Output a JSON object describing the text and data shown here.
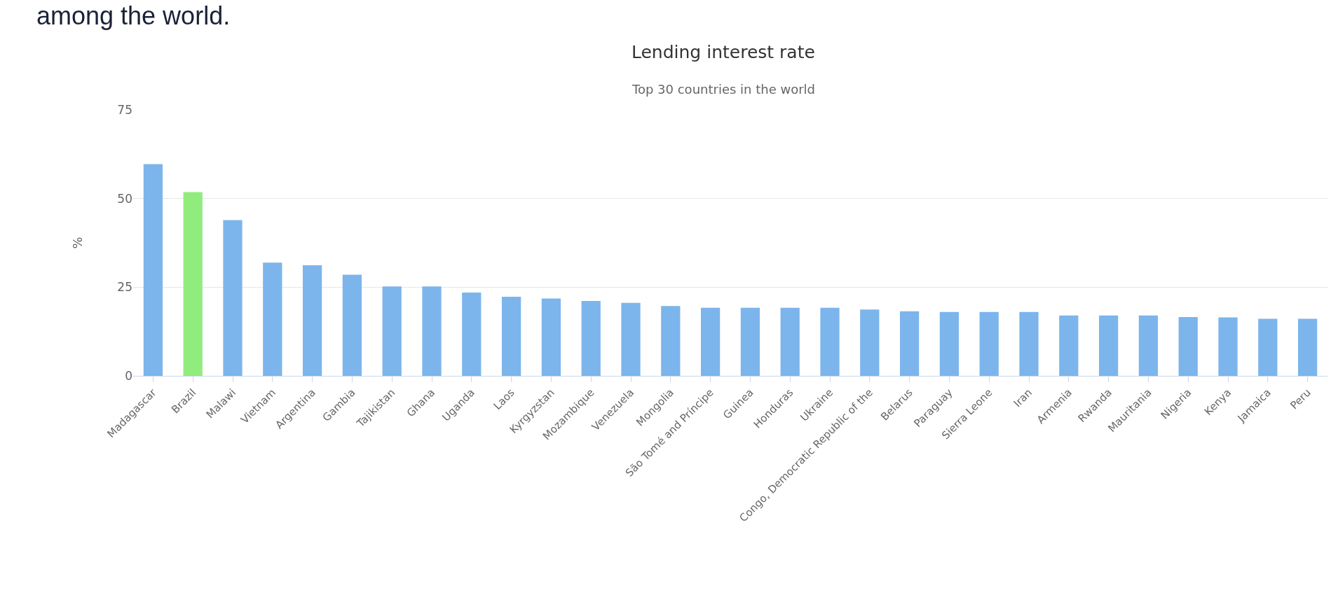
{
  "chart_data": {
    "type": "bar",
    "title": "Lending interest rate",
    "subtitle": "Top 30 countries in the world",
    "ylabel": "%",
    "annotations": [
      "among the world."
    ],
    "categories": [
      "Madagascar",
      "Brazil",
      "Malawi",
      "Vietnam",
      "Argentina",
      "Gambia",
      "Tajikistan",
      "Ghana",
      "Uganda",
      "Laos",
      "Kyrgyzstan",
      "Mozambique",
      "Venezuela",
      "Mongolia",
      "São Tomé and Príncipe",
      "Guinea",
      "Honduras",
      "Ukraine",
      "Congo, Democratic Republic of the",
      "Belarus",
      "Paraguay",
      "Sierra Leone",
      "Iran",
      "Armenia",
      "Rwanda",
      "Mauritania",
      "Nigeria",
      "Kenya",
      "Jamaica",
      "Peru"
    ],
    "values": [
      59.7,
      51.8,
      43.9,
      31.9,
      31.2,
      28.5,
      25.2,
      25.2,
      23.5,
      22.3,
      21.8,
      21.1,
      20.6,
      19.7,
      19.2,
      19.2,
      19.2,
      19.2,
      18.7,
      18.2,
      18.0,
      18.0,
      18.0,
      17.0,
      17.0,
      17.0,
      16.6,
      16.5,
      16.1,
      16.1
    ],
    "colors": [
      "#7cb5ec",
      "#90ed7d",
      "#7cb5ec",
      "#7cb5ec",
      "#7cb5ec",
      "#7cb5ec",
      "#7cb5ec",
      "#7cb5ec",
      "#7cb5ec",
      "#7cb5ec",
      "#7cb5ec",
      "#7cb5ec",
      "#7cb5ec",
      "#7cb5ec",
      "#7cb5ec",
      "#7cb5ec",
      "#7cb5ec",
      "#7cb5ec",
      "#7cb5ec",
      "#7cb5ec",
      "#7cb5ec",
      "#7cb5ec",
      "#7cb5ec",
      "#7cb5ec",
      "#7cb5ec",
      "#7cb5ec",
      "#7cb5ec",
      "#7cb5ec",
      "#7cb5ec",
      "#7cb5ec"
    ],
    "ylim": [
      0,
      75
    ],
    "yticks": [
      0,
      25,
      50,
      75
    ],
    "grid": "y",
    "legend": false
  }
}
